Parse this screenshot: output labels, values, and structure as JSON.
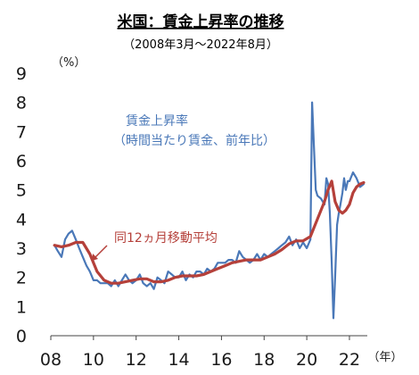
{
  "chart_data": {
    "type": "line",
    "title": "米国：賃金上昇率の推移",
    "subtitle": "（2008年3月〜2022年8月）",
    "y_unit": "（%）",
    "x_unit": "（年）",
    "ylim": [
      0,
      9
    ],
    "xlim": [
      2008,
      2022.67
    ],
    "y_ticks": [
      "0",
      "1",
      "2",
      "3",
      "4",
      "5",
      "6",
      "7",
      "8",
      "9"
    ],
    "x_ticks": [
      "08",
      "10",
      "12",
      "14",
      "16",
      "18",
      "20",
      "22"
    ],
    "grid": false,
    "series": [
      {
        "name": "賃金上昇率（時間当たり賃金、前年比）",
        "label_line1": "賃金上昇率",
        "label_line2": "（時間当たり賃金、前年比）",
        "color": "#4a78b8",
        "points": [
          [
            2008.17,
            3.1
          ],
          [
            2008.33,
            2.9
          ],
          [
            2008.5,
            2.7
          ],
          [
            2008.67,
            3.3
          ],
          [
            2008.83,
            3.5
          ],
          [
            2009.0,
            3.6
          ],
          [
            2009.17,
            3.3
          ],
          [
            2009.33,
            3.0
          ],
          [
            2009.5,
            2.7
          ],
          [
            2009.67,
            2.4
          ],
          [
            2009.83,
            2.2
          ],
          [
            2010.0,
            1.9
          ],
          [
            2010.17,
            1.9
          ],
          [
            2010.33,
            1.8
          ],
          [
            2010.5,
            1.8
          ],
          [
            2010.67,
            1.8
          ],
          [
            2010.83,
            1.7
          ],
          [
            2011.0,
            1.9
          ],
          [
            2011.17,
            1.7
          ],
          [
            2011.33,
            1.9
          ],
          [
            2011.5,
            2.1
          ],
          [
            2011.67,
            1.9
          ],
          [
            2011.83,
            1.8
          ],
          [
            2012.0,
            1.9
          ],
          [
            2012.17,
            2.1
          ],
          [
            2012.33,
            1.8
          ],
          [
            2012.5,
            1.7
          ],
          [
            2012.67,
            1.8
          ],
          [
            2012.83,
            1.6
          ],
          [
            2013.0,
            2.0
          ],
          [
            2013.17,
            1.9
          ],
          [
            2013.33,
            1.8
          ],
          [
            2013.5,
            2.2
          ],
          [
            2013.67,
            2.1
          ],
          [
            2013.83,
            2.0
          ],
          [
            2014.0,
            2.0
          ],
          [
            2014.17,
            2.2
          ],
          [
            2014.33,
            1.9
          ],
          [
            2014.5,
            2.1
          ],
          [
            2014.67,
            2.0
          ],
          [
            2014.83,
            2.2
          ],
          [
            2015.0,
            2.2
          ],
          [
            2015.17,
            2.1
          ],
          [
            2015.33,
            2.3
          ],
          [
            2015.5,
            2.2
          ],
          [
            2015.67,
            2.3
          ],
          [
            2015.83,
            2.5
          ],
          [
            2016.0,
            2.5
          ],
          [
            2016.17,
            2.5
          ],
          [
            2016.33,
            2.6
          ],
          [
            2016.5,
            2.6
          ],
          [
            2016.67,
            2.5
          ],
          [
            2016.83,
            2.9
          ],
          [
            2017.0,
            2.7
          ],
          [
            2017.17,
            2.6
          ],
          [
            2017.33,
            2.5
          ],
          [
            2017.5,
            2.6
          ],
          [
            2017.67,
            2.8
          ],
          [
            2017.83,
            2.6
          ],
          [
            2018.0,
            2.8
          ],
          [
            2018.17,
            2.7
          ],
          [
            2018.33,
            2.8
          ],
          [
            2018.5,
            2.9
          ],
          [
            2018.67,
            3.0
          ],
          [
            2018.83,
            3.1
          ],
          [
            2019.0,
            3.2
          ],
          [
            2019.17,
            3.4
          ],
          [
            2019.33,
            3.1
          ],
          [
            2019.5,
            3.3
          ],
          [
            2019.67,
            3.0
          ],
          [
            2019.83,
            3.2
          ],
          [
            2020.0,
            3.0
          ],
          [
            2020.17,
            3.3
          ],
          [
            2020.25,
            8.0
          ],
          [
            2020.33,
            6.6
          ],
          [
            2020.42,
            5.0
          ],
          [
            2020.5,
            4.8
          ],
          [
            2020.67,
            4.7
          ],
          [
            2020.83,
            4.5
          ],
          [
            2020.92,
            5.4
          ],
          [
            2021.0,
            5.2
          ],
          [
            2021.08,
            4.2
          ],
          [
            2021.17,
            2.5
          ],
          [
            2021.25,
            0.6
          ],
          [
            2021.33,
            2.0
          ],
          [
            2021.42,
            3.8
          ],
          [
            2021.5,
            4.2
          ],
          [
            2021.58,
            4.5
          ],
          [
            2021.67,
            4.9
          ],
          [
            2021.75,
            5.4
          ],
          [
            2021.83,
            5.0
          ],
          [
            2021.92,
            5.3
          ],
          [
            2022.0,
            5.3
          ],
          [
            2022.17,
            5.6
          ],
          [
            2022.33,
            5.4
          ],
          [
            2022.5,
            5.1
          ],
          [
            2022.67,
            5.2
          ]
        ]
      },
      {
        "name": "同12ヵ月移動平均",
        "color": "#b5403a",
        "points": [
          [
            2008.17,
            3.1
          ],
          [
            2008.5,
            3.05
          ],
          [
            2008.83,
            3.1
          ],
          [
            2009.17,
            3.2
          ],
          [
            2009.5,
            3.2
          ],
          [
            2009.83,
            2.8
          ],
          [
            2010.17,
            2.2
          ],
          [
            2010.5,
            1.9
          ],
          [
            2010.83,
            1.8
          ],
          [
            2011.17,
            1.8
          ],
          [
            2011.5,
            1.85
          ],
          [
            2011.83,
            1.9
          ],
          [
            2012.17,
            1.95
          ],
          [
            2012.5,
            1.95
          ],
          [
            2012.83,
            1.85
          ],
          [
            2013.17,
            1.85
          ],
          [
            2013.5,
            1.9
          ],
          [
            2013.83,
            2.0
          ],
          [
            2014.17,
            2.05
          ],
          [
            2014.5,
            2.05
          ],
          [
            2014.83,
            2.05
          ],
          [
            2015.17,
            2.1
          ],
          [
            2015.5,
            2.2
          ],
          [
            2015.83,
            2.3
          ],
          [
            2016.17,
            2.4
          ],
          [
            2016.5,
            2.5
          ],
          [
            2016.83,
            2.55
          ],
          [
            2017.17,
            2.6
          ],
          [
            2017.5,
            2.6
          ],
          [
            2017.83,
            2.6
          ],
          [
            2018.17,
            2.7
          ],
          [
            2018.5,
            2.8
          ],
          [
            2018.83,
            2.95
          ],
          [
            2019.17,
            3.15
          ],
          [
            2019.5,
            3.25
          ],
          [
            2019.83,
            3.25
          ],
          [
            2020.17,
            3.4
          ],
          [
            2020.5,
            4.0
          ],
          [
            2020.83,
            4.6
          ],
          [
            2021.0,
            5.0
          ],
          [
            2021.17,
            5.3
          ],
          [
            2021.33,
            4.6
          ],
          [
            2021.5,
            4.3
          ],
          [
            2021.67,
            4.2
          ],
          [
            2021.83,
            4.3
          ],
          [
            2022.0,
            4.5
          ],
          [
            2022.17,
            4.9
          ],
          [
            2022.33,
            5.1
          ],
          [
            2022.5,
            5.2
          ],
          [
            2022.67,
            5.25
          ]
        ]
      }
    ]
  }
}
